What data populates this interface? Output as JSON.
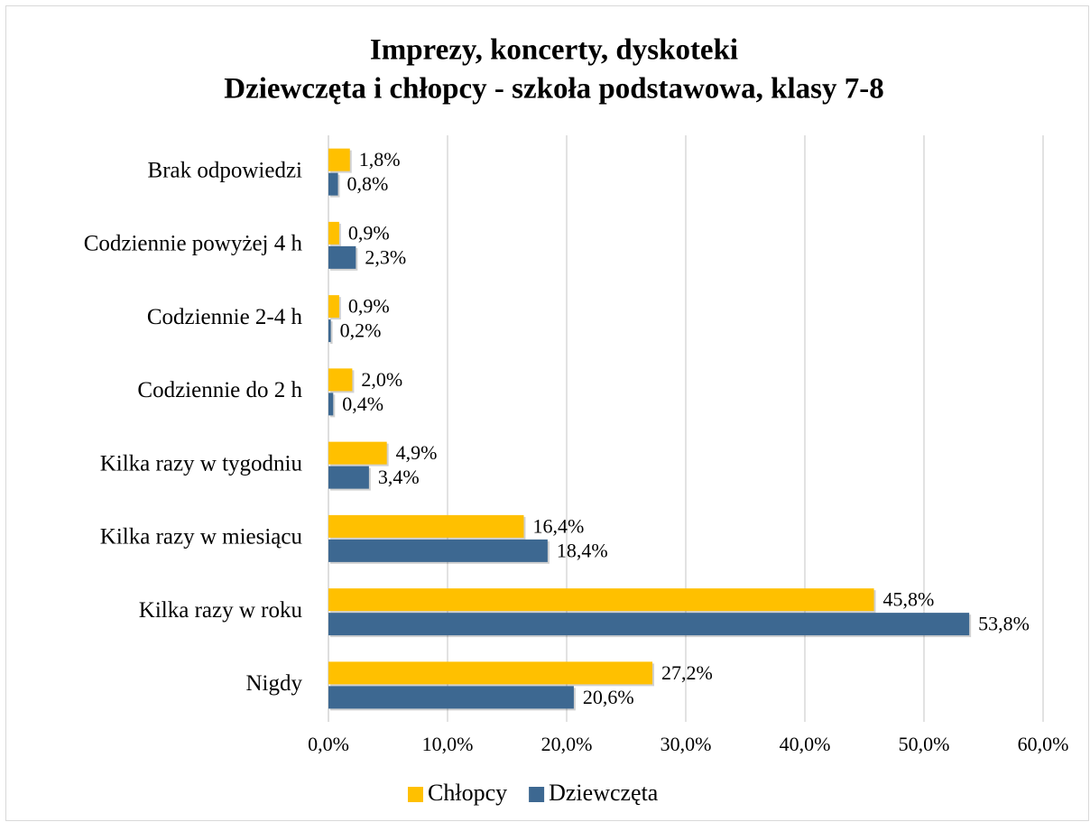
{
  "chart_data": {
    "type": "bar",
    "orientation": "horizontal",
    "title": "Imprezy, koncerty, dyskoteki",
    "subtitle": "Dziewczęta i chłopcy - szkoła podstawowa, klasy 7-8",
    "categories": [
      "Brak odpowiedzi",
      "Codziennie powyżej 4 h",
      "Codziennie 2-4 h",
      "Codziennie do 2 h",
      "Kilka razy w tygodniu",
      "Kilka razy w miesiącu",
      "Kilka razy w roku",
      "Nigdy"
    ],
    "series": [
      {
        "name": "Chłopcy",
        "color": "#FFC000",
        "values": [
          1.8,
          0.9,
          0.9,
          2.0,
          4.9,
          16.4,
          45.8,
          27.2
        ],
        "value_labels": [
          "1,8%",
          "0,9%",
          "0,9%",
          "2,0%",
          "4,9%",
          "16,4%",
          "45,8%",
          "27,2%"
        ]
      },
      {
        "name": "Dziewczęta",
        "color": "#3D6891",
        "values": [
          0.8,
          2.3,
          0.2,
          0.4,
          3.4,
          18.4,
          53.8,
          20.6
        ],
        "value_labels": [
          "0,8%",
          "2,3%",
          "0,2%",
          "0,4%",
          "3,4%",
          "18,4%",
          "53,8%",
          "20,6%"
        ]
      }
    ],
    "xlim": [
      0,
      60
    ],
    "xticks": [
      {
        "value": 0,
        "label": "0,0%"
      },
      {
        "value": 10,
        "label": "10,0%"
      },
      {
        "value": 20,
        "label": "20,0%"
      },
      {
        "value": 30,
        "label": "30,0%"
      },
      {
        "value": 40,
        "label": "40,0%"
      },
      {
        "value": 50,
        "label": "50,0%"
      },
      {
        "value": 60,
        "label": "60,0%"
      }
    ],
    "grid": true,
    "legend": "bottom"
  }
}
